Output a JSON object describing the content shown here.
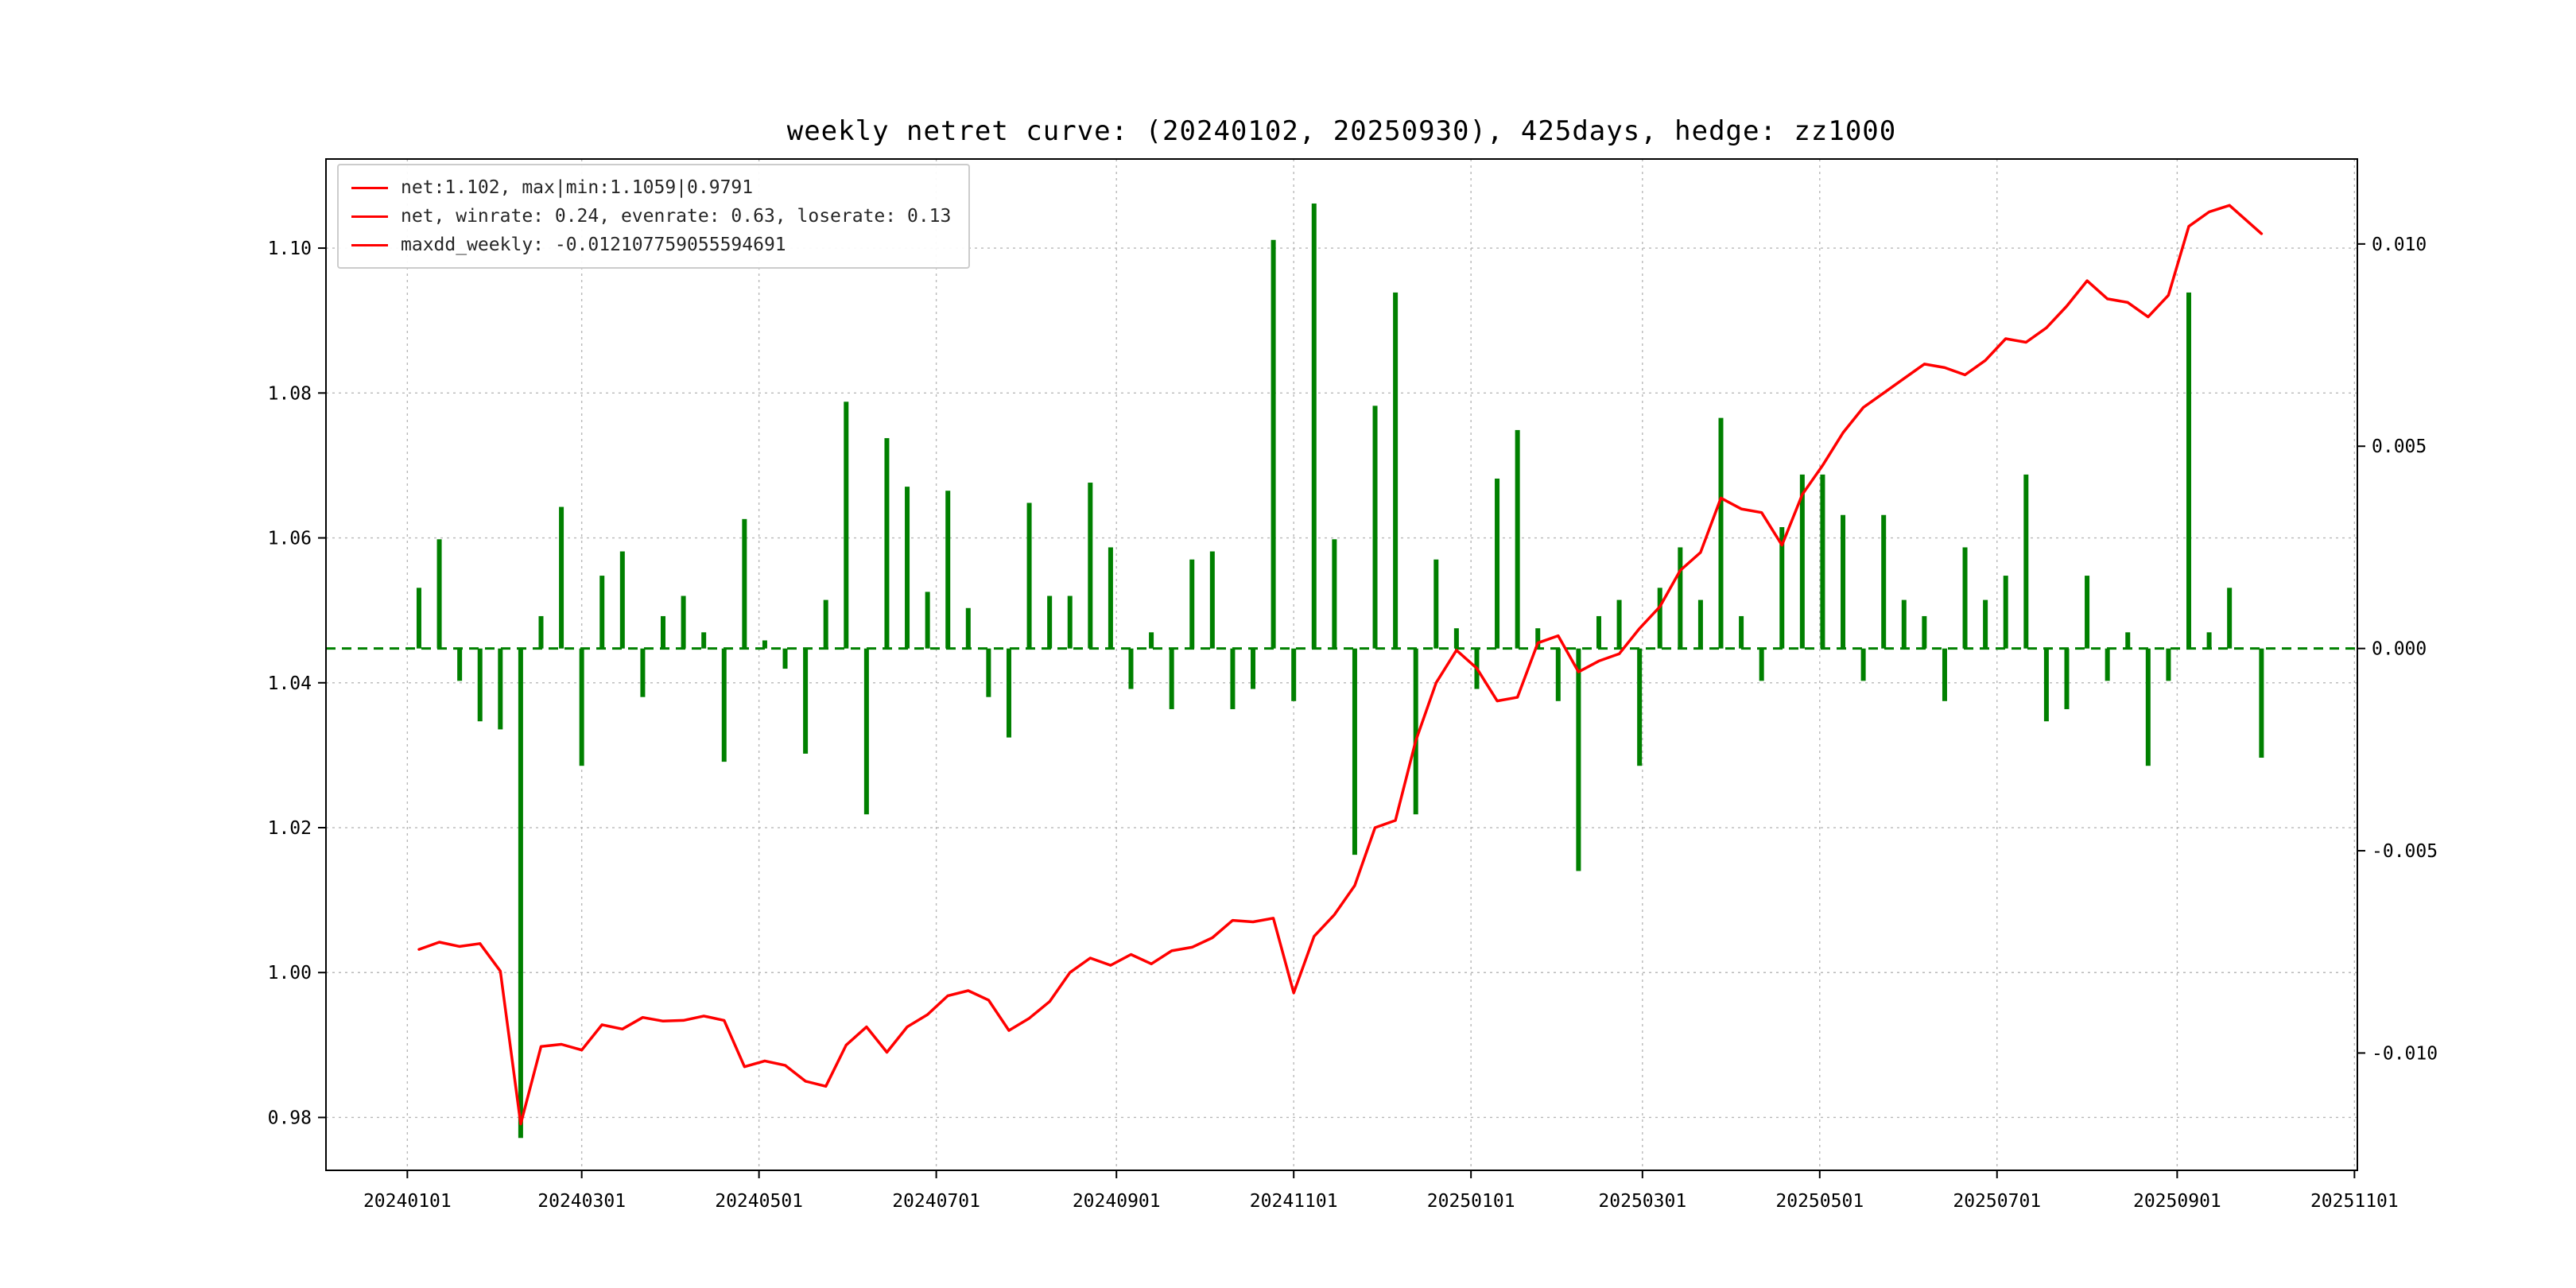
{
  "figure": {
    "title": "weekly netret curve: (20240102, 20250930), 425days, hedge: zz1000",
    "background": "#ffffff"
  },
  "legend": {
    "marker_color": "#ff0000",
    "items": [
      "net:1.102, max|min:1.1059|0.9791",
      "net, winrate: 0.24, evenrate: 0.63, loserate: 0.13",
      "maxdd_weekly: -0.012107759055594691"
    ]
  },
  "axes": {
    "x_ticks": [
      "20240101",
      "20240301",
      "20240501",
      "20240701",
      "20240901",
      "20241101",
      "20250101",
      "20250301",
      "20250501",
      "20250701",
      "20250901",
      "20251101"
    ],
    "y_left_ticks": [
      "0.98",
      "1.00",
      "1.02",
      "1.04",
      "1.06",
      "1.08",
      "1.10"
    ],
    "y_right_ticks": [
      "-0.010",
      "-0.005",
      "0.000",
      "0.005",
      "0.010"
    ],
    "grid_color": "#b8b8b8",
    "border_color": "#000000"
  },
  "chart_data": {
    "type": "line+bar",
    "title": "weekly netret curve: (20240102, 20250930), 425days, hedge: zz1000",
    "x_axis_start": "20231204",
    "x_axis_end": "20251102",
    "ylim_left": [
      0.9727,
      1.1123
    ],
    "ylim_right": [
      -0.0129,
      0.0121
    ],
    "zero_line": {
      "axis": "right",
      "value": 0.0,
      "style": "dashed",
      "color": "#008000"
    },
    "legend_position": "upper-left",
    "grid": true,
    "x": [
      "20240105",
      "20240112",
      "20240119",
      "20240126",
      "20240202",
      "20240209",
      "20240216",
      "20240223",
      "20240301",
      "20240308",
      "20240315",
      "20240322",
      "20240329",
      "20240405",
      "20240412",
      "20240419",
      "20240426",
      "20240503",
      "20240510",
      "20240517",
      "20240524",
      "20240531",
      "20240607",
      "20240614",
      "20240621",
      "20240628",
      "20240705",
      "20240712",
      "20240719",
      "20240726",
      "20240802",
      "20240809",
      "20240816",
      "20240823",
      "20240830",
      "20240906",
      "20240913",
      "20240920",
      "20240927",
      "20241004",
      "20241011",
      "20241018",
      "20241025",
      "20241101",
      "20241108",
      "20241115",
      "20241122",
      "20241129",
      "20241206",
      "20241213",
      "20241220",
      "20241227",
      "20250103",
      "20250110",
      "20250117",
      "20250124",
      "20250131",
      "20250207",
      "20250214",
      "20250221",
      "20250228",
      "20250307",
      "20250314",
      "20250321",
      "20250328",
      "20250404",
      "20250411",
      "20250418",
      "20250425",
      "20250502",
      "20250509",
      "20250516",
      "20250523",
      "20250530",
      "20250606",
      "20250613",
      "20250620",
      "20250627",
      "20250704",
      "20250711",
      "20250718",
      "20250725",
      "20250801",
      "20250808",
      "20250815",
      "20250822",
      "20250829",
      "20250905",
      "20250912",
      "20250919",
      "20250930"
    ],
    "series": [
      {
        "name": "net",
        "render": "line",
        "axis": "left",
        "color": "#ff0000",
        "final": 1.102,
        "max": 1.1059,
        "min": 0.9791,
        "values": [
          1.0032,
          1.0042,
          1.0036,
          1.004,
          1.0002,
          0.9791,
          0.9898,
          0.9901,
          0.9893,
          0.9928,
          0.9922,
          0.9938,
          0.9933,
          0.9934,
          0.994,
          0.9934,
          0.987,
          0.9878,
          0.9872,
          0.985,
          0.9843,
          0.99,
          0.9925,
          0.989,
          0.9925,
          0.9942,
          0.9968,
          0.9975,
          0.9962,
          0.992,
          0.9937,
          0.996,
          1.0,
          1.002,
          1.001,
          1.0025,
          1.0012,
          1.003,
          1.0035,
          1.0048,
          1.0072,
          1.007,
          1.0075,
          0.9972,
          1.005,
          1.008,
          1.012,
          1.02,
          1.021,
          1.032,
          1.04,
          1.0445,
          1.042,
          1.0375,
          1.038,
          1.0455,
          1.0465,
          1.0415,
          1.043,
          1.044,
          1.0475,
          1.0505,
          1.0555,
          1.058,
          1.0655,
          1.064,
          1.0635,
          1.059,
          1.066,
          1.07,
          1.0745,
          1.078,
          1.08,
          1.082,
          1.084,
          1.0835,
          1.0825,
          1.0845,
          1.0875,
          1.087,
          1.089,
          1.092,
          1.0955,
          1.093,
          1.0925,
          1.0905,
          1.0935,
          1.103,
          1.105,
          1.1059,
          1.102
        ]
      },
      {
        "name": "weekly_ret",
        "render": "bar",
        "axis": "right",
        "color": "#008000",
        "winrate": 0.24,
        "evenrate": 0.63,
        "loserate": 0.13,
        "maxdd_weekly": -0.012107759055594691,
        "values": [
          0.0015,
          0.0027,
          -0.0008,
          -0.0018,
          -0.002,
          -0.0121,
          0.0008,
          0.0035,
          -0.0029,
          0.0018,
          0.0024,
          -0.0012,
          0.0008,
          0.0013,
          0.0004,
          -0.0028,
          0.0032,
          0.0002,
          -0.0005,
          -0.0026,
          0.0012,
          0.0061,
          -0.0041,
          0.0052,
          0.004,
          0.0014,
          0.0039,
          0.001,
          -0.0012,
          -0.0022,
          0.0036,
          0.0013,
          0.0013,
          0.0041,
          0.0025,
          -0.001,
          0.0004,
          -0.0015,
          0.0022,
          0.0024,
          -0.0015,
          -0.001,
          0.0101,
          -0.0013,
          0.011,
          0.0027,
          -0.0051,
          0.006,
          0.0088,
          -0.0041,
          0.0022,
          0.0005,
          -0.001,
          0.0042,
          0.0054,
          0.0005,
          -0.0013,
          -0.0055,
          0.0008,
          0.0012,
          -0.0029,
          0.0015,
          0.0025,
          0.0012,
          0.0057,
          0.0008,
          -0.0008,
          0.003,
          0.0043,
          0.0043,
          0.0033,
          -0.0008,
          0.0033,
          0.0012,
          0.0008,
          -0.0013,
          0.0025,
          0.0012,
          0.0018,
          0.0043,
          -0.0018,
          -0.0015,
          0.0018,
          -0.0008,
          0.0004,
          -0.0029,
          -0.0008,
          0.0088,
          0.0004,
          0.0015,
          -0.0027
        ]
      }
    ]
  }
}
